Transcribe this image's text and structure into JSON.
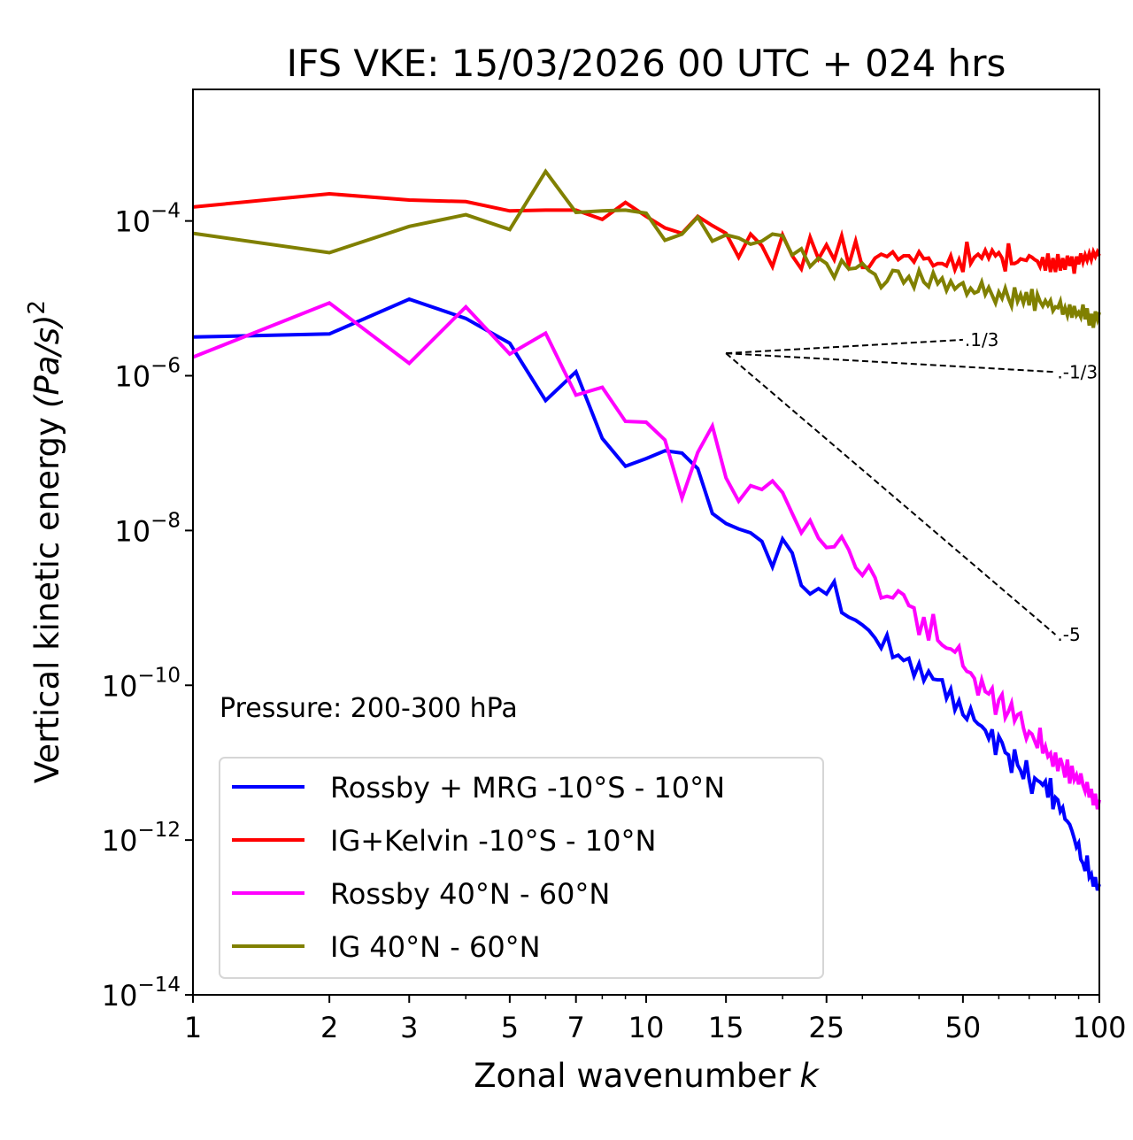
{
  "chart_data": {
    "type": "line",
    "title": "IFS VKE: 15/03/2026 00 UTC + 024 hrs",
    "xlabel": "Zonal wavenumber",
    "xlabel_var": "k",
    "ylabel": "Vertical kinetic energy",
    "ylabel_units": "(Pa/s)",
    "ylabel_units_exp": "2",
    "xscale": "log",
    "yscale": "log",
    "xlim": [
      1,
      100
    ],
    "ylim_log10": [
      -14,
      -2.3
    ],
    "xticks": [
      1,
      2,
      3,
      5,
      7,
      10,
      15,
      25,
      50,
      100
    ],
    "xtick_labels": [
      "1",
      "2",
      "3",
      "5",
      "7",
      "10",
      "15",
      "25",
      "50",
      "100"
    ],
    "yticks_log10": [
      -4,
      -6,
      -8,
      -10,
      -12,
      -14
    ],
    "ytick_labels": [
      {
        "base": "10",
        "exp": "−4"
      },
      {
        "base": "10",
        "exp": "−6"
      },
      {
        "base": "10",
        "exp": "−8"
      },
      {
        "base": "10",
        "exp": "−10"
      },
      {
        "base": "10",
        "exp": "−12"
      },
      {
        "base": "10",
        "exp": "−14"
      }
    ],
    "annotation": "Pressure: 200-300 hPa",
    "grid": false,
    "legend_position": "lower-left",
    "reference_slopes": [
      {
        "label": "1/3",
        "slope": 0.3333,
        "k_start": 15,
        "k_end": 50,
        "log10_start": -5.71
      },
      {
        "label": "-1/3",
        "slope": -0.3333,
        "k_start": 15,
        "k_end": 80,
        "log10_start": -5.71
      },
      {
        "label": "-5",
        "slope": -5,
        "k_start": 15,
        "k_end": 80,
        "log10_start": -5.71
      }
    ],
    "x": [
      1,
      2,
      3,
      4,
      5,
      6,
      7,
      8,
      9,
      10,
      11,
      12,
      13,
      14,
      15,
      16,
      17,
      18,
      19,
      20,
      21,
      22,
      23,
      24,
      25,
      26,
      27,
      28,
      29,
      30,
      31,
      32,
      33,
      34,
      35,
      36,
      37,
      38,
      39,
      40,
      41,
      42,
      43,
      44,
      45,
      46,
      47,
      48,
      49,
      50,
      51,
      52,
      53,
      54,
      55,
      56,
      57,
      58,
      59,
      60,
      61,
      62,
      63,
      64,
      65,
      66,
      67,
      68,
      69,
      70,
      71,
      72,
      73,
      74,
      75,
      76,
      77,
      78,
      79,
      80,
      81,
      82,
      83,
      84,
      85,
      86,
      87,
      88,
      89,
      90,
      91,
      92,
      93,
      94,
      95,
      96,
      97,
      98,
      99,
      100
    ],
    "series": [
      {
        "name": "Rossby + MRG -10°S - 10°N",
        "color": "#0000ff",
        "log10_values": [
          -5.5,
          -5.46,
          -5.01,
          -5.26,
          -5.58,
          -6.32,
          -5.95,
          -6.81,
          -7.17,
          -7.07,
          -6.97,
          -7.0,
          -7.2,
          -7.78,
          -7.91,
          -7.98,
          -8.03,
          -8.14,
          -8.47,
          -8.11,
          -8.29,
          -8.71,
          -8.82,
          -8.75,
          -8.82,
          -8.66,
          -9.06,
          -9.12,
          -9.16,
          -9.22,
          -9.29,
          -9.39,
          -9.52,
          -9.35,
          -9.64,
          -9.61,
          -9.68,
          -9.65,
          -9.88,
          -9.72,
          -9.94,
          -9.82,
          -9.92,
          -9.93,
          -9.93,
          -10.17,
          -10.05,
          -10.32,
          -10.2,
          -10.38,
          -10.44,
          -10.3,
          -10.45,
          -10.5,
          -10.53,
          -10.58,
          -10.69,
          -10.57,
          -10.9,
          -10.66,
          -10.74,
          -10.87,
          -10.9,
          -11.13,
          -10.83,
          -11.03,
          -11.1,
          -11.21,
          -10.97,
          -11.22,
          -11.4,
          -11.2,
          -11.23,
          -11.25,
          -11.29,
          -11.24,
          -11.45,
          -11.2,
          -11.6,
          -11.45,
          -11.48,
          -11.63,
          -11.58,
          -11.73,
          -11.76,
          -11.8,
          -11.88,
          -11.98,
          -12.09,
          -12.04,
          -12.25,
          -12.3,
          -12.4,
          -12.2,
          -12.48,
          -12.44,
          -12.6,
          -12.48,
          -12.65,
          -12.57
        ]
      },
      {
        "name": "IG+Kelvin -10°S - 10°N",
        "color": "#ff0000",
        "log10_values": [
          -3.82,
          -3.65,
          -3.73,
          -3.75,
          -3.87,
          -3.86,
          -3.86,
          -3.98,
          -3.76,
          -3.94,
          -4.09,
          -4.16,
          -3.94,
          -4.06,
          -4.16,
          -4.47,
          -4.17,
          -4.32,
          -4.59,
          -4.18,
          -4.45,
          -4.62,
          -4.21,
          -4.49,
          -4.31,
          -4.5,
          -4.19,
          -4.57,
          -4.26,
          -4.6,
          -4.6,
          -4.48,
          -4.43,
          -4.46,
          -4.4,
          -4.5,
          -4.45,
          -4.45,
          -4.53,
          -4.4,
          -4.49,
          -4.48,
          -4.58,
          -4.55,
          -4.55,
          -4.58,
          -4.45,
          -4.63,
          -4.5,
          -4.66,
          -4.27,
          -4.55,
          -4.47,
          -4.43,
          -4.48,
          -4.38,
          -4.48,
          -4.38,
          -4.45,
          -4.41,
          -4.48,
          -4.65,
          -4.29,
          -4.55,
          -4.55,
          -4.53,
          -4.49,
          -4.5,
          -4.51,
          -4.45,
          -4.47,
          -4.5,
          -4.52,
          -4.59,
          -4.47,
          -4.64,
          -4.42,
          -4.66,
          -4.48,
          -4.66,
          -4.43,
          -4.64,
          -4.48,
          -4.63,
          -4.45,
          -4.58,
          -4.46,
          -4.68,
          -4.46,
          -4.56,
          -4.42,
          -4.53,
          -4.44,
          -4.51,
          -4.42,
          -4.5,
          -4.4,
          -4.46,
          -4.4,
          -4.45
        ]
      },
      {
        "name": "Rossby 40°N - 60°N",
        "color": "#ff00ff",
        "log10_values": [
          -5.76,
          -5.06,
          -5.84,
          -5.11,
          -5.72,
          -5.45,
          -6.25,
          -6.15,
          -6.59,
          -6.6,
          -6.83,
          -7.58,
          -6.99,
          -6.65,
          -7.32,
          -7.62,
          -7.42,
          -7.47,
          -7.36,
          -7.51,
          -7.78,
          -8.03,
          -7.87,
          -8.1,
          -8.22,
          -8.21,
          -8.08,
          -8.25,
          -8.48,
          -8.58,
          -8.46,
          -8.61,
          -8.87,
          -8.85,
          -8.87,
          -8.78,
          -8.83,
          -8.97,
          -9.0,
          -9.35,
          -9.12,
          -9.42,
          -9.08,
          -9.42,
          -9.48,
          -9.52,
          -9.53,
          -9.57,
          -9.5,
          -9.75,
          -9.82,
          -9.84,
          -9.91,
          -10.13,
          -9.93,
          -10.08,
          -10.11,
          -10.04,
          -10.38,
          -10.19,
          -10.12,
          -10.42,
          -10.34,
          -10.23,
          -10.46,
          -10.38,
          -10.36,
          -10.55,
          -10.69,
          -10.6,
          -10.63,
          -10.72,
          -10.81,
          -10.55,
          -10.88,
          -10.79,
          -10.92,
          -10.88,
          -11.05,
          -10.87,
          -11.11,
          -10.94,
          -11.04,
          -11.19,
          -10.96,
          -11.27,
          -11.04,
          -11.22,
          -11.16,
          -11.28,
          -11.14,
          -11.29,
          -11.37,
          -11.25,
          -11.45,
          -11.34,
          -11.55,
          -11.4,
          -11.6,
          -11.48
        ]
      },
      {
        "name": "IG 40°N - 60°N",
        "color": "#808000",
        "log10_values": [
          -4.16,
          -4.41,
          -4.07,
          -3.92,
          -4.11,
          -3.36,
          -3.89,
          -3.87,
          -3.86,
          -3.9,
          -4.25,
          -4.17,
          -3.95,
          -4.26,
          -4.18,
          -4.22,
          -4.3,
          -4.26,
          -4.17,
          -4.19,
          -4.44,
          -4.36,
          -4.59,
          -4.48,
          -4.55,
          -4.73,
          -4.51,
          -4.62,
          -4.61,
          -4.55,
          -4.64,
          -4.69,
          -4.86,
          -4.78,
          -4.64,
          -4.65,
          -4.8,
          -4.72,
          -4.86,
          -4.64,
          -4.79,
          -4.85,
          -4.67,
          -4.81,
          -4.74,
          -4.9,
          -4.78,
          -4.88,
          -4.83,
          -4.8,
          -4.95,
          -4.87,
          -4.93,
          -4.91,
          -4.79,
          -4.95,
          -4.86,
          -4.96,
          -5.06,
          -4.92,
          -5.0,
          -4.87,
          -5.0,
          -5.1,
          -4.86,
          -5.04,
          -4.95,
          -5.06,
          -4.92,
          -5.09,
          -4.88,
          -5.16,
          -4.95,
          -5.04,
          -5.1,
          -5.03,
          -5.09,
          -5.03,
          -5.16,
          -5.11,
          -5.12,
          -5.04,
          -5.21,
          -5.12,
          -5.22,
          -5.08,
          -5.25,
          -5.1,
          -5.22,
          -5.18,
          -5.24,
          -5.08,
          -5.27,
          -5.13,
          -5.35,
          -5.2,
          -5.38,
          -5.17,
          -5.27,
          -5.18
        ]
      }
    ]
  }
}
